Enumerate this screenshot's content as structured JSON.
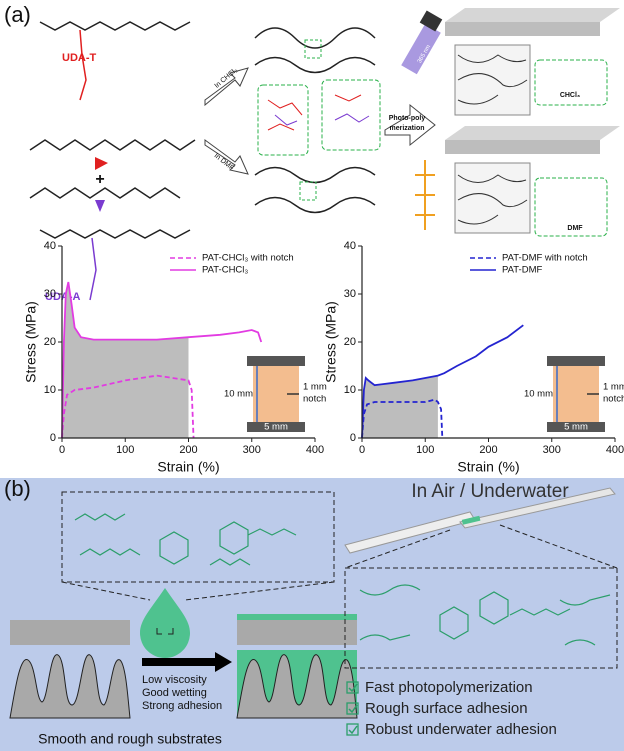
{
  "panel_a": {
    "label": "(a)",
    "uda_t": "UDA-T",
    "uda_a": "UDA-A",
    "plus": "+",
    "solvent_1": "In CHCl₃",
    "solvent_2": "In DMF",
    "light": "365 nm",
    "process": [
      "Photo-poly",
      "merization"
    ],
    "network_1": "CHCl₃",
    "network_2": "DMF"
  },
  "chart_data": [
    {
      "type": "line",
      "xlabel": "Strain (%)",
      "ylabel": "Stress (MPa)",
      "xlim": [
        0,
        400
      ],
      "ylim": [
        0,
        40
      ],
      "xticks": [
        0,
        100,
        200,
        300,
        400
      ],
      "yticks": [
        0,
        10,
        20,
        30,
        40
      ],
      "legend": "upper right",
      "series": [
        {
          "name": "PAT-CHCl₃ with notch",
          "color": "#e23be2",
          "dashed": true,
          "x": [
            0,
            3,
            8,
            20,
            50,
            100,
            150,
            200,
            205,
            208
          ],
          "values": [
            0,
            5,
            9,
            10,
            10.5,
            12,
            13,
            12,
            10,
            0
          ]
        },
        {
          "name": "PAT-CHCl₃",
          "color": "#e23be2",
          "dashed": false,
          "x": [
            0,
            3,
            6,
            10,
            15,
            20,
            30,
            50,
            80,
            100,
            150,
            200,
            250,
            280,
            300,
            310,
            315
          ],
          "values": [
            0,
            20,
            30,
            32.5,
            28,
            23,
            21,
            20.5,
            20.5,
            20.5,
            20.5,
            21,
            21.5,
            22,
            22.5,
            22,
            20
          ]
        }
      ],
      "annotations": [
        "10 mm",
        "1 mm",
        "notch",
        "5 mm"
      ]
    },
    {
      "type": "line",
      "xlabel": "Strain (%)",
      "ylabel": "Stress (MPa)",
      "xlim": [
        0,
        400
      ],
      "ylim": [
        0,
        40
      ],
      "xticks": [
        0,
        100,
        200,
        300,
        400
      ],
      "yticks": [
        0,
        10,
        20,
        30,
        40
      ],
      "legend": "upper right",
      "series": [
        {
          "name": "PAT-DMF with notch",
          "color": "#2424d0",
          "dashed": true,
          "x": [
            0,
            3,
            8,
            20,
            50,
            80,
            100,
            115,
            120,
            125,
            127
          ],
          "values": [
            0,
            5,
            7,
            7.5,
            7.5,
            7.5,
            7.5,
            8,
            7.5,
            6,
            0
          ]
        },
        {
          "name": "PAT-DMF",
          "color": "#2424d0",
          "dashed": false,
          "x": [
            0,
            3,
            6,
            10,
            20,
            50,
            80,
            100,
            120,
            130,
            150,
            180,
            200,
            230,
            255
          ],
          "values": [
            0,
            10,
            12.5,
            12,
            11,
            11.5,
            12,
            12.5,
            13,
            13.5,
            15,
            17,
            19,
            21,
            23.5
          ]
        }
      ],
      "annotations": [
        "10 mm",
        "1 mm",
        "notch",
        "5 mm"
      ]
    }
  ],
  "panel_b": {
    "label": "(b)",
    "title": "In Air / Underwater",
    "properties": [
      "Low viscosity",
      "Good wetting",
      "Strong adhesion"
    ],
    "substrates": "Smooth and rough substrates",
    "features": [
      "Fast photopolymerization",
      "Rough surface adhesion",
      "Robust underwater adhesion"
    ]
  }
}
